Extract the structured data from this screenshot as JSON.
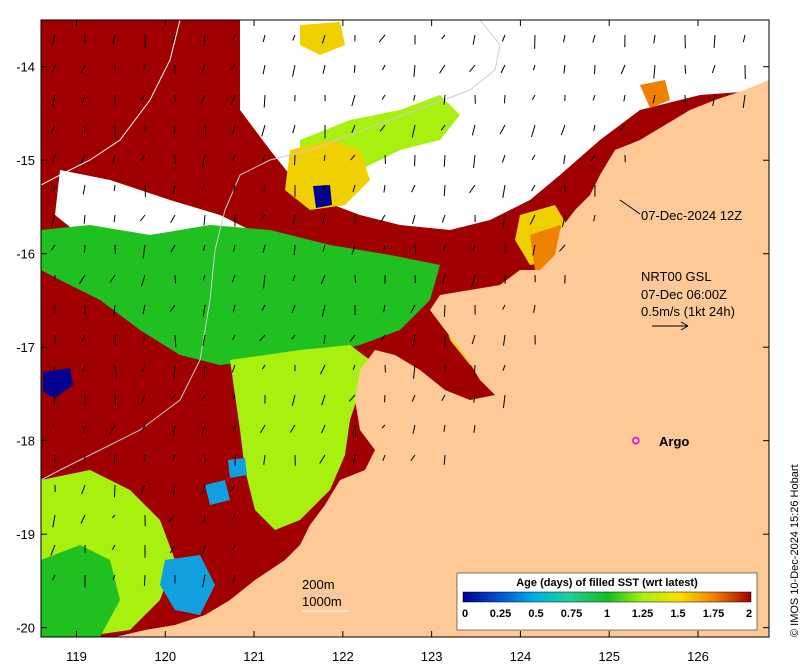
{
  "map": {
    "region": "Kimberley coast, north-western Australia",
    "lon_range": [
      118.6,
      126.8
    ],
    "lat_range": [
      -20.1,
      -13.5
    ],
    "x_ticks": [
      119,
      120,
      121,
      122,
      123,
      124,
      125,
      126
    ],
    "y_ticks": [
      -14,
      -15,
      -16,
      -17,
      -18,
      -19,
      -20
    ],
    "x_tick_labels": [
      "119",
      "120",
      "121",
      "122",
      "123",
      "124",
      "125",
      "126"
    ],
    "y_tick_labels": [
      "-14",
      "-15",
      "-16",
      "-17",
      "-18",
      "-19",
      "-20"
    ]
  },
  "annotations": {
    "timestamp": "07-Dec-2024 12Z",
    "current_source": "NRT00 GSL",
    "current_time": "07-Dec 06:00Z",
    "current_scale": "0.5m/s (1kt 24h)",
    "argo_label": "Argo",
    "isobath_200": "200m",
    "isobath_1000": "1000m"
  },
  "argo_float": {
    "lon": 125.3,
    "lat": -18.0
  },
  "colorbar": {
    "title": "Age (days) of filled SST (wrt latest)",
    "min": 0,
    "max": 2,
    "tick_labels": [
      "0",
      "0.25",
      "0.5",
      "0.75",
      "1",
      "1.25",
      "1.5",
      "1.75",
      "2"
    ],
    "stops": [
      "#000090",
      "#0050d0",
      "#00b0e8",
      "#20d090",
      "#10c020",
      "#a8f010",
      "#f8e000",
      "#f08000",
      "#a00000"
    ]
  },
  "credit": "© IMOS 10-Dec-2024 15:26 Hobart",
  "colors": {
    "land": "#fdc997",
    "age_2": "#a00000",
    "age_1": "#20c020",
    "age_1_25": "#a8f010",
    "age_1_5": "#f0d000",
    "age_1_75": "#f08000",
    "age_0_5": "#10a0e0",
    "age_0": "#000090",
    "cloud": "#ffffff"
  }
}
